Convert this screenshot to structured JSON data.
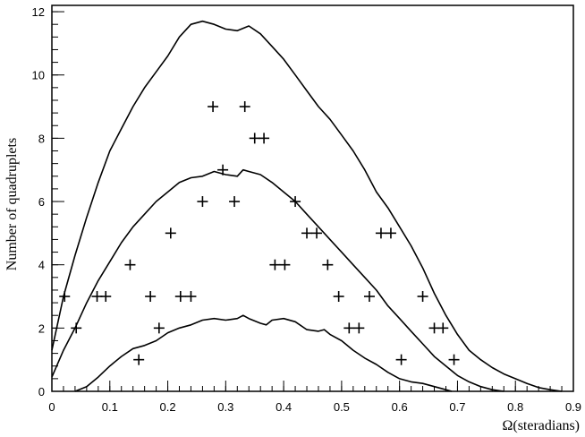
{
  "chart_data": {
    "type": "scatter",
    "title": "",
    "xlabel": "Ω(steradians)",
    "ylabel": "Number of quadruplets",
    "xlim": [
      0,
      0.9
    ],
    "ylim": [
      0,
      12.2
    ],
    "x_ticks": [
      "0",
      "0.1",
      "0.2",
      "0.3",
      "0.4",
      "0.5",
      "0.6",
      "0.7",
      "0.8",
      "0.9"
    ],
    "x_tick_values": [
      0,
      0.1,
      0.2,
      0.3,
      0.4,
      0.5,
      0.6,
      0.7,
      0.8,
      0.9
    ],
    "y_ticks": [
      "0",
      "2",
      "4",
      "6",
      "8",
      "10",
      "12"
    ],
    "y_tick_values": [
      0,
      2,
      4,
      6,
      8,
      10,
      12
    ],
    "grid": false,
    "series": [
      {
        "kind": "markers",
        "marker": "plus",
        "points": [
          [
            0.022,
            3
          ],
          [
            0.042,
            2
          ],
          [
            0.078,
            3
          ],
          [
            0.093,
            3
          ],
          [
            0.135,
            4
          ],
          [
            0.15,
            1
          ],
          [
            0.17,
            3
          ],
          [
            0.185,
            2
          ],
          [
            0.205,
            5
          ],
          [
            0.222,
            3
          ],
          [
            0.24,
            3
          ],
          [
            0.26,
            6
          ],
          [
            0.278,
            9
          ],
          [
            0.295,
            7
          ],
          [
            0.315,
            6
          ],
          [
            0.333,
            9
          ],
          [
            0.35,
            8
          ],
          [
            0.366,
            8
          ],
          [
            0.42,
            6
          ],
          [
            0.385,
            4
          ],
          [
            0.402,
            4
          ],
          [
            0.44,
            5
          ],
          [
            0.457,
            5
          ],
          [
            0.476,
            4
          ],
          [
            0.495,
            3
          ],
          [
            0.513,
            2
          ],
          [
            0.53,
            2
          ],
          [
            0.548,
            3
          ],
          [
            0.568,
            5
          ],
          [
            0.585,
            5
          ],
          [
            0.603,
            1
          ],
          [
            0.64,
            3
          ],
          [
            0.66,
            2
          ],
          [
            0.675,
            2
          ],
          [
            0.694,
            1
          ]
        ]
      },
      {
        "kind": "line",
        "points": [
          [
            0.0,
            1.3
          ],
          [
            0.02,
            3.0
          ],
          [
            0.04,
            4.3
          ],
          [
            0.06,
            5.5
          ],
          [
            0.08,
            6.6
          ],
          [
            0.1,
            7.6
          ],
          [
            0.12,
            8.3
          ],
          [
            0.14,
            9.0
          ],
          [
            0.16,
            9.6
          ],
          [
            0.18,
            10.1
          ],
          [
            0.2,
            10.6
          ],
          [
            0.22,
            11.2
          ],
          [
            0.24,
            11.6
          ],
          [
            0.26,
            11.7
          ],
          [
            0.28,
            11.6
          ],
          [
            0.3,
            11.45
          ],
          [
            0.32,
            11.4
          ],
          [
            0.34,
            11.55
          ],
          [
            0.36,
            11.3
          ],
          [
            0.38,
            10.9
          ],
          [
            0.4,
            10.5
          ],
          [
            0.42,
            10.0
          ],
          [
            0.44,
            9.5
          ],
          [
            0.46,
            9.0
          ],
          [
            0.48,
            8.6
          ],
          [
            0.5,
            8.1
          ],
          [
            0.52,
            7.6
          ],
          [
            0.54,
            7.0
          ],
          [
            0.56,
            6.3
          ],
          [
            0.58,
            5.8
          ],
          [
            0.6,
            5.2
          ],
          [
            0.62,
            4.6
          ],
          [
            0.64,
            3.9
          ],
          [
            0.66,
            3.1
          ],
          [
            0.68,
            2.4
          ],
          [
            0.7,
            1.8
          ],
          [
            0.72,
            1.3
          ],
          [
            0.74,
            1.0
          ],
          [
            0.76,
            0.75
          ],
          [
            0.78,
            0.55
          ],
          [
            0.8,
            0.4
          ],
          [
            0.82,
            0.25
          ],
          [
            0.84,
            0.12
          ],
          [
            0.86,
            0.05
          ],
          [
            0.88,
            0.0
          ]
        ]
      },
      {
        "kind": "line",
        "points": [
          [
            0.0,
            0.45
          ],
          [
            0.02,
            1.3
          ],
          [
            0.04,
            2.0
          ],
          [
            0.06,
            2.8
          ],
          [
            0.08,
            3.5
          ],
          [
            0.1,
            4.1
          ],
          [
            0.12,
            4.7
          ],
          [
            0.14,
            5.2
          ],
          [
            0.16,
            5.6
          ],
          [
            0.18,
            6.0
          ],
          [
            0.2,
            6.3
          ],
          [
            0.22,
            6.6
          ],
          [
            0.24,
            6.75
          ],
          [
            0.26,
            6.8
          ],
          [
            0.28,
            6.95
          ],
          [
            0.3,
            6.85
          ],
          [
            0.32,
            6.8
          ],
          [
            0.33,
            7.0
          ],
          [
            0.34,
            6.95
          ],
          [
            0.36,
            6.85
          ],
          [
            0.38,
            6.6
          ],
          [
            0.4,
            6.3
          ],
          [
            0.42,
            6.0
          ],
          [
            0.44,
            5.6
          ],
          [
            0.46,
            5.2
          ],
          [
            0.48,
            4.8
          ],
          [
            0.5,
            4.4
          ],
          [
            0.52,
            4.0
          ],
          [
            0.54,
            3.6
          ],
          [
            0.56,
            3.2
          ],
          [
            0.58,
            2.7
          ],
          [
            0.6,
            2.3
          ],
          [
            0.62,
            1.9
          ],
          [
            0.64,
            1.5
          ],
          [
            0.66,
            1.1
          ],
          [
            0.68,
            0.8
          ],
          [
            0.7,
            0.5
          ],
          [
            0.72,
            0.3
          ],
          [
            0.74,
            0.15
          ],
          [
            0.76,
            0.05
          ],
          [
            0.78,
            0.0
          ]
        ]
      },
      {
        "kind": "line",
        "points": [
          [
            0.04,
            0.0
          ],
          [
            0.06,
            0.15
          ],
          [
            0.08,
            0.45
          ],
          [
            0.1,
            0.8
          ],
          [
            0.12,
            1.1
          ],
          [
            0.14,
            1.35
          ],
          [
            0.16,
            1.45
          ],
          [
            0.18,
            1.6
          ],
          [
            0.2,
            1.85
          ],
          [
            0.22,
            2.0
          ],
          [
            0.24,
            2.1
          ],
          [
            0.26,
            2.25
          ],
          [
            0.28,
            2.3
          ],
          [
            0.3,
            2.25
          ],
          [
            0.32,
            2.3
          ],
          [
            0.33,
            2.4
          ],
          [
            0.34,
            2.3
          ],
          [
            0.36,
            2.15
          ],
          [
            0.37,
            2.1
          ],
          [
            0.38,
            2.25
          ],
          [
            0.4,
            2.3
          ],
          [
            0.42,
            2.2
          ],
          [
            0.44,
            1.95
          ],
          [
            0.46,
            1.9
          ],
          [
            0.47,
            1.95
          ],
          [
            0.48,
            1.8
          ],
          [
            0.5,
            1.6
          ],
          [
            0.52,
            1.3
          ],
          [
            0.54,
            1.05
          ],
          [
            0.56,
            0.85
          ],
          [
            0.58,
            0.6
          ],
          [
            0.6,
            0.4
          ],
          [
            0.62,
            0.3
          ],
          [
            0.64,
            0.25
          ],
          [
            0.66,
            0.15
          ],
          [
            0.68,
            0.05
          ],
          [
            0.69,
            0.0
          ]
        ]
      }
    ]
  }
}
